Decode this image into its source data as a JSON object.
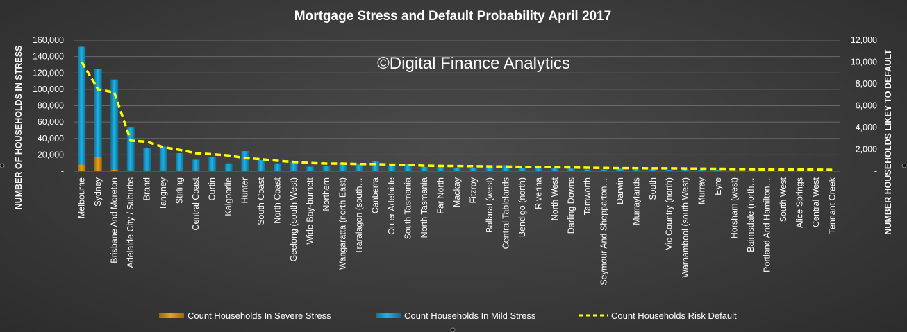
{
  "watermark": "©Digital Finance Analytics",
  "colors": {
    "severe": "#e6a118",
    "mild": "#1fb3e5",
    "default": "#ffff00",
    "grid": "#6a6a6a"
  },
  "chart_data": {
    "type": "bar",
    "title": "Mortgage Stress and Default Probability April 2017",
    "ylabel": "NUMBER OF HOUSEHOLDS IN STRESS",
    "y2label": "NUMBER HOUSEHOLDS LIKEY TO DEFAULT",
    "ylim": [
      0,
      160000
    ],
    "y2lim": [
      0,
      12000
    ],
    "yticks": [
      "-",
      "20,000",
      "40,000",
      "60,000",
      "80,000",
      "100,000",
      "120,000",
      "140,000",
      "160,000"
    ],
    "y2ticks": [
      "-",
      "2,000",
      "4,000",
      "6,000",
      "8,000",
      "10,000",
      "12,000"
    ],
    "grid": true,
    "stacked": true,
    "legend_position": "bottom",
    "categories": [
      "Melbourne",
      "Sydney",
      "Brisbane And Moreton",
      "Adelaide City / Suburbs",
      "Brand",
      "Tangney",
      "Stirling",
      "Central Coast",
      "Curtin",
      "Kalgoorlie",
      "Hunter",
      "South Coast",
      "North Coast",
      "Geelong (south West)",
      "Wide Bay-burnett",
      "Northern",
      "Wangaratta (north East)",
      "Traralagon (south…",
      "Canberra",
      "Outer Adelaide",
      "South Tasmania",
      "North Tasmania",
      "Far North",
      "Mackay",
      "Fitzroy",
      "Ballarat (west)",
      "Central Tablelands",
      "Bendigo (north)",
      "Riverina",
      "North West",
      "Darling Downs",
      "Tamworth",
      "Seymour And Shepparton…",
      "Darwin",
      "Murraylands",
      "South",
      "Vic Country (north)",
      "Warnambool (south West)",
      "Murray",
      "Eyre",
      "Horsham (west)",
      "Bairnsdale (north…",
      "Portland And Hamilton…",
      "South West",
      "Alice Springs",
      "Central West",
      "Tennant Creek"
    ],
    "series": [
      {
        "name": "Count Households In Severe Stress",
        "kind": "bar",
        "values": [
          8000,
          17000,
          2000,
          1000,
          1000,
          1000,
          1000,
          1000,
          1000,
          500,
          500,
          500,
          500,
          500,
          500,
          300,
          300,
          300,
          300,
          300,
          300,
          200,
          200,
          200,
          200,
          200,
          200,
          200,
          200,
          200,
          100,
          100,
          100,
          100,
          100,
          100,
          100,
          100,
          100,
          100,
          100,
          50,
          50,
          50,
          50,
          50,
          20
        ]
      },
      {
        "name": "Count Households In Mild Stress",
        "kind": "bar",
        "values": [
          144000,
          108000,
          110000,
          53000,
          27000,
          29000,
          21000,
          13000,
          16000,
          9000,
          24000,
          13000,
          9000,
          11000,
          5000,
          6000,
          10000,
          8000,
          12000,
          6000,
          8000,
          5000,
          5000,
          4000,
          4000,
          7000,
          7000,
          4000,
          4000,
          4000,
          3000,
          2000,
          2000,
          3000,
          1500,
          2000,
          1500,
          2000,
          1500,
          1500,
          1000,
          800,
          700,
          600,
          500,
          400,
          200
        ]
      },
      {
        "name": "Count Households Risk Default",
        "kind": "line",
        "axis": "y2",
        "values": [
          10000,
          7500,
          7200,
          2800,
          2700,
          2200,
          1950,
          1650,
          1550,
          1450,
          1200,
          1100,
          950,
          850,
          750,
          700,
          700,
          650,
          650,
          600,
          580,
          500,
          480,
          470,
          460,
          440,
          420,
          400,
          390,
          370,
          340,
          320,
          300,
          280,
          270,
          260,
          260,
          250,
          230,
          220,
          200,
          190,
          170,
          160,
          150,
          140,
          120
        ]
      }
    ]
  }
}
